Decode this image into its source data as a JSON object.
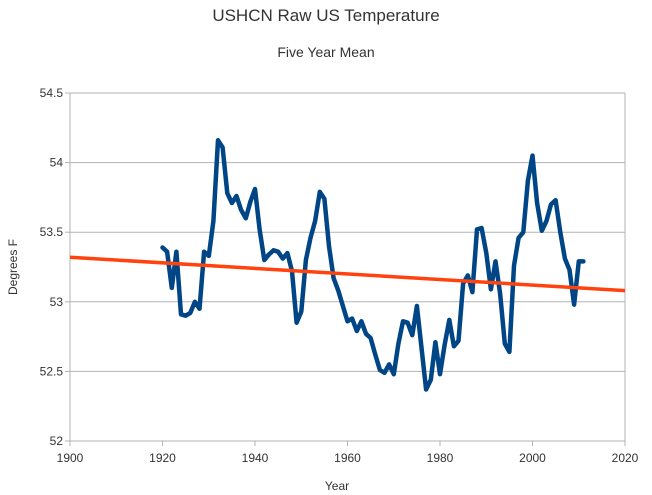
{
  "chart_data": {
    "type": "line",
    "title": "USHCN Raw US Temperature",
    "subtitle": "Five Year Mean",
    "xlabel": "Year",
    "ylabel": "Degrees F",
    "xlim": [
      1900,
      2020
    ],
    "ylim": [
      52,
      54.5
    ],
    "x_ticks": [
      1900,
      1920,
      1940,
      1960,
      1980,
      2000,
      2020
    ],
    "y_ticks": [
      52,
      52.5,
      53,
      53.5,
      54,
      54.5
    ],
    "y_tick_labels": [
      "52",
      "52.5",
      "53",
      "53.5",
      "54",
      "54.5"
    ],
    "grid": "horizontal",
    "legend": "none",
    "series": [
      {
        "color": "#004586",
        "x": [
          1920,
          1921,
          1922,
          1923,
          1924,
          1925,
          1926,
          1927,
          1928,
          1929,
          1930,
          1931,
          1932,
          1933,
          1934,
          1935,
          1936,
          1937,
          1938,
          1939,
          1940,
          1941,
          1942,
          1943,
          1944,
          1945,
          1946,
          1947,
          1948,
          1949,
          1950,
          1951,
          1952,
          1953,
          1954,
          1955,
          1956,
          1957,
          1958,
          1959,
          1960,
          1961,
          1962,
          1963,
          1964,
          1965,
          1966,
          1967,
          1968,
          1969,
          1970,
          1971,
          1972,
          1973,
          1974,
          1975,
          1976,
          1977,
          1978,
          1979,
          1980,
          1981,
          1982,
          1983,
          1984,
          1985,
          1986,
          1987,
          1988,
          1989,
          1990,
          1991,
          1992,
          1993,
          1994,
          1995,
          1996,
          1997,
          1998,
          1999,
          2000,
          2001,
          2002,
          2003,
          2004,
          2005,
          2006,
          2007,
          2008,
          2009,
          2010,
          2011
        ],
        "y": [
          53.39,
          53.36,
          53.1,
          53.36,
          52.91,
          52.9,
          52.92,
          53.0,
          52.95,
          53.36,
          53.33,
          53.58,
          54.16,
          54.11,
          53.78,
          53.71,
          53.76,
          53.66,
          53.6,
          53.72,
          53.81,
          53.52,
          53.3,
          53.34,
          53.37,
          53.36,
          53.31,
          53.35,
          53.22,
          52.85,
          52.93,
          53.3,
          53.46,
          53.58,
          53.79,
          53.74,
          53.4,
          53.17,
          53.08,
          52.97,
          52.86,
          52.88,
          52.79,
          52.86,
          52.77,
          52.74,
          52.62,
          52.51,
          52.49,
          52.55,
          52.48,
          52.7,
          52.86,
          52.85,
          52.76,
          52.97,
          52.67,
          52.37,
          52.44,
          52.71,
          52.48,
          52.69,
          52.87,
          52.68,
          52.72,
          53.13,
          53.19,
          53.07,
          53.52,
          53.53,
          53.35,
          53.09,
          53.29,
          53.06,
          52.7,
          52.64,
          53.26,
          53.46,
          53.5,
          53.87,
          54.05,
          53.71,
          53.51,
          53.58,
          53.7,
          53.73,
          53.5,
          53.31,
          53.23,
          52.98,
          53.29,
          53.29
        ]
      },
      {
        "type": "trendline",
        "color": "#ff420e",
        "x": [
          1900,
          2020
        ],
        "y": [
          53.32,
          53.08
        ]
      }
    ]
  }
}
